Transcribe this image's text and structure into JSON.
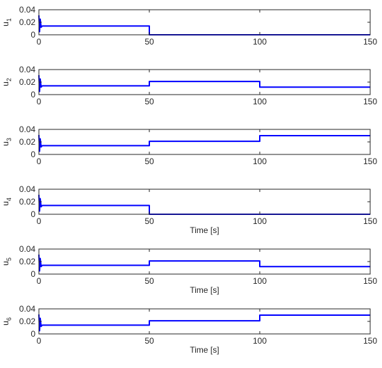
{
  "chart_data": [
    {
      "type": "line",
      "ylabel": "u1",
      "ylabel_main": "u",
      "ylabel_sub": "1",
      "xlabel": "",
      "xlim": [
        0,
        150
      ],
      "ylim": [
        0,
        0.04
      ],
      "xticks": [
        0,
        50,
        100,
        150
      ],
      "xtick_labels": [
        "0",
        "50",
        "100",
        "150"
      ],
      "yticks": [
        0,
        0.02,
        0.04
      ],
      "ytick_labels": [
        "0",
        "0.02",
        "0.04"
      ],
      "grid": false,
      "color": "#0000ff",
      "series": [
        {
          "x": [
            0,
            0.3,
            0.6,
            1.0,
            1.5,
            50,
            50,
            150
          ],
          "y": [
            0.031,
            0.005,
            0.025,
            0.012,
            0.014,
            0.014,
            0.0,
            0.0
          ]
        }
      ]
    },
    {
      "type": "line",
      "ylabel": "u2",
      "ylabel_main": "u",
      "ylabel_sub": "2",
      "xlabel": "",
      "xlim": [
        0,
        150
      ],
      "ylim": [
        0,
        0.04
      ],
      "xticks": [
        0,
        50,
        100,
        150
      ],
      "xtick_labels": [
        "0",
        "50",
        "100",
        "150"
      ],
      "yticks": [
        0,
        0.02,
        0.04
      ],
      "ytick_labels": [
        "0",
        "0.02",
        "0.04"
      ],
      "grid": false,
      "color": "#0000ff",
      "series": [
        {
          "x": [
            0,
            0.3,
            0.6,
            1.0,
            1.5,
            50,
            50,
            100,
            100,
            150
          ],
          "y": [
            0.031,
            0.005,
            0.025,
            0.012,
            0.014,
            0.014,
            0.021,
            0.021,
            0.012,
            0.012
          ]
        }
      ]
    },
    {
      "type": "line",
      "ylabel": "u3",
      "ylabel_main": "u",
      "ylabel_sub": "3",
      "xlabel": "",
      "xlim": [
        0,
        150
      ],
      "ylim": [
        0,
        0.04
      ],
      "xticks": [
        0,
        50,
        100,
        150
      ],
      "xtick_labels": [
        "0",
        "50",
        "100",
        "150"
      ],
      "yticks": [
        0,
        0.02,
        0.04
      ],
      "ytick_labels": [
        "0",
        "0.02",
        "0.04"
      ],
      "grid": false,
      "color": "#0000ff",
      "series": [
        {
          "x": [
            0,
            0.3,
            0.6,
            1.0,
            1.5,
            50,
            50,
            100,
            100,
            150
          ],
          "y": [
            0.031,
            0.005,
            0.025,
            0.012,
            0.014,
            0.014,
            0.021,
            0.021,
            0.03,
            0.03
          ]
        }
      ]
    },
    {
      "type": "line",
      "ylabel": "u4",
      "ylabel_main": "u",
      "ylabel_sub": "4",
      "xlabel": "Time [s]",
      "xlim": [
        0,
        150
      ],
      "ylim": [
        0,
        0.04
      ],
      "xticks": [
        0,
        50,
        100,
        150
      ],
      "xtick_labels": [
        "0",
        "50",
        "100",
        "150"
      ],
      "yticks": [
        0,
        0.02,
        0.04
      ],
      "ytick_labels": [
        "0",
        "0.02",
        "0.04"
      ],
      "grid": false,
      "color": "#0000ff",
      "series": [
        {
          "x": [
            0,
            0.3,
            0.6,
            1.0,
            1.5,
            50,
            50,
            150
          ],
          "y": [
            0.031,
            0.005,
            0.025,
            0.012,
            0.014,
            0.014,
            0.0,
            0.0
          ]
        }
      ]
    },
    {
      "type": "line",
      "ylabel": "u5",
      "ylabel_main": "u",
      "ylabel_sub": "5",
      "xlabel": "Time [s]",
      "xlim": [
        0,
        150
      ],
      "ylim": [
        0,
        0.04
      ],
      "xticks": [
        0,
        50,
        100,
        150
      ],
      "xtick_labels": [
        "0",
        "50",
        "100",
        "150"
      ],
      "yticks": [
        0,
        0.02,
        0.04
      ],
      "ytick_labels": [
        "0",
        "0.02",
        "0.04"
      ],
      "grid": false,
      "color": "#0000ff",
      "series": [
        {
          "x": [
            0,
            0.3,
            0.6,
            1.0,
            1.5,
            50,
            50,
            100,
            100,
            150
          ],
          "y": [
            0.031,
            0.005,
            0.025,
            0.012,
            0.014,
            0.014,
            0.021,
            0.021,
            0.012,
            0.012
          ]
        }
      ]
    },
    {
      "type": "line",
      "ylabel": "u6",
      "ylabel_main": "u",
      "ylabel_sub": "6",
      "xlabel": "Time [s]",
      "xlim": [
        0,
        150
      ],
      "ylim": [
        0,
        0.04
      ],
      "xticks": [
        0,
        50,
        100,
        150
      ],
      "xtick_labels": [
        "0",
        "50",
        "100",
        "150"
      ],
      "yticks": [
        0,
        0.02,
        0.04
      ],
      "ytick_labels": [
        "0",
        "0.02",
        "0.04"
      ],
      "grid": false,
      "color": "#0000ff",
      "series": [
        {
          "x": [
            0,
            0.3,
            0.6,
            1.0,
            1.5,
            50,
            50,
            100,
            100,
            150
          ],
          "y": [
            0.031,
            0.005,
            0.025,
            0.012,
            0.014,
            0.014,
            0.021,
            0.021,
            0.03,
            0.03
          ]
        }
      ]
    }
  ]
}
